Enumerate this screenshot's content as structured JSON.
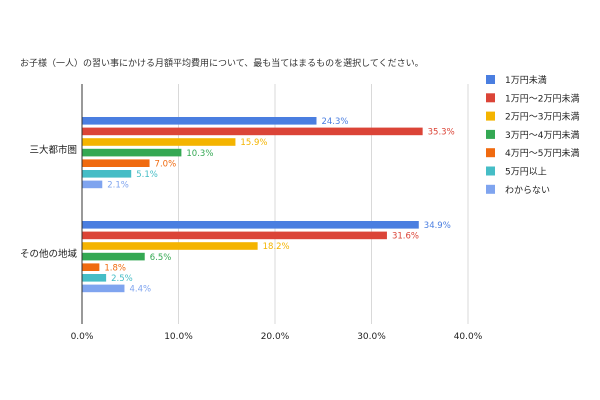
{
  "chart_data": {
    "type": "bar",
    "orientation": "horizontal",
    "title": "お子様（一人）の習い事にかける月額平均費用について、最も当てはまるものを選択してください。",
    "categories": [
      "三大都市圏",
      "その他の地域"
    ],
    "series": [
      {
        "name": "1万円未満",
        "color": "#4a7ee0",
        "values": [
          24.3,
          34.9
        ],
        "labels": [
          "24.3%",
          "34.9%"
        ]
      },
      {
        "name": "1万円〜2万円未満",
        "color": "#db4437",
        "values": [
          35.3,
          31.6
        ],
        "labels": [
          "35.3%",
          "31.6%"
        ]
      },
      {
        "name": "2万円〜3万円未満",
        "color": "#f4b400",
        "values": [
          15.9,
          18.2
        ],
        "labels": [
          "15.9%",
          "18.2%"
        ]
      },
      {
        "name": "3万円〜4万円未満",
        "color": "#34a853",
        "values": [
          10.3,
          6.5
        ],
        "labels": [
          "10.3%",
          "6.5%"
        ]
      },
      {
        "name": "4万円〜5万円未満",
        "color": "#f06a0f",
        "values": [
          7.0,
          1.8
        ],
        "labels": [
          "7.0%",
          "1.8%"
        ]
      },
      {
        "name": "5万円以上",
        "color": "#45bdc6",
        "values": [
          5.1,
          2.5
        ],
        "labels": [
          "5.1%",
          "2.5%"
        ]
      },
      {
        "name": "わからない",
        "color": "#7fa4ef",
        "values": [
          2.1,
          4.4
        ],
        "labels": [
          "2.1%",
          "4.4%"
        ]
      }
    ],
    "xlim": [
      0,
      40
    ],
    "xticks": [
      {
        "value": 0,
        "label": "0.0%"
      },
      {
        "value": 10,
        "label": "10.0%"
      },
      {
        "value": 20,
        "label": "20.0%"
      },
      {
        "value": 30,
        "label": "30.0%"
      },
      {
        "value": 40,
        "label": "40.0%"
      }
    ],
    "grid": true,
    "legend_position": "right"
  }
}
